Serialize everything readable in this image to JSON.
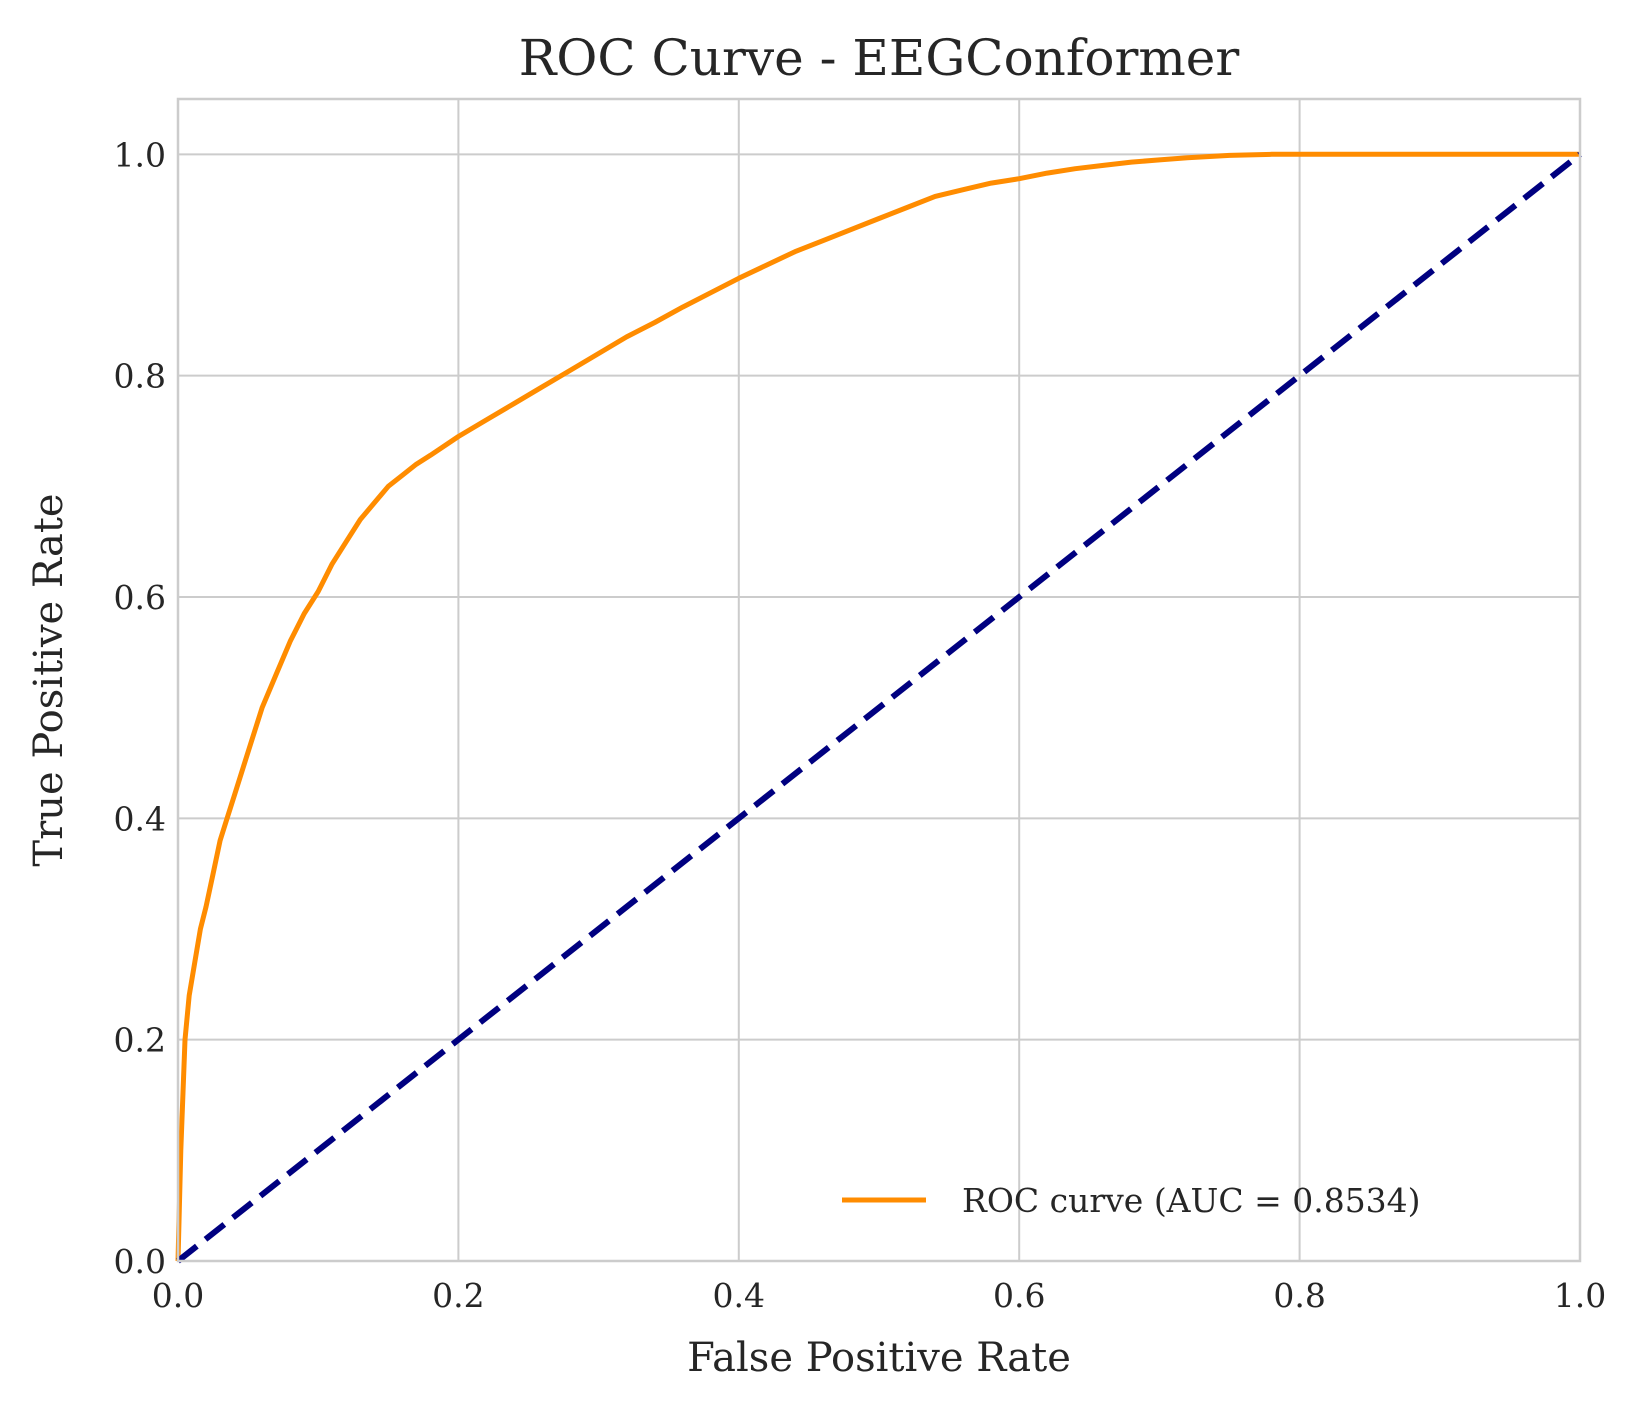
{
  "chart_data": {
    "type": "line",
    "title": "ROC Curve - EEGConformer",
    "xlabel": "False Positive Rate",
    "ylabel": "True Positive Rate",
    "xlim": [
      0.0,
      1.0
    ],
    "ylim": [
      0.0,
      1.05
    ],
    "x_ticks": [
      "0.0",
      "0.2",
      "0.4",
      "0.6",
      "0.8",
      "1.0"
    ],
    "y_ticks": [
      "0.0",
      "0.2",
      "0.4",
      "0.6",
      "0.8",
      "1.0"
    ],
    "grid": true,
    "legend_position": "lower-right",
    "series": [
      {
        "name": "ROC curve (AUC = 0.8534)",
        "color": "#ff8c00",
        "line_style": "solid",
        "x": [
          0.0,
          0.002,
          0.005,
          0.008,
          0.012,
          0.016,
          0.02,
          0.025,
          0.03,
          0.035,
          0.04,
          0.05,
          0.06,
          0.07,
          0.08,
          0.09,
          0.1,
          0.11,
          0.12,
          0.13,
          0.14,
          0.15,
          0.16,
          0.17,
          0.18,
          0.2,
          0.22,
          0.24,
          0.26,
          0.28,
          0.3,
          0.32,
          0.34,
          0.36,
          0.38,
          0.4,
          0.42,
          0.44,
          0.46,
          0.48,
          0.5,
          0.52,
          0.54,
          0.56,
          0.58,
          0.6,
          0.62,
          0.64,
          0.66,
          0.68,
          0.7,
          0.72,
          0.75,
          0.78,
          0.8,
          0.85,
          0.9,
          0.95,
          1.0
        ],
        "y": [
          0.0,
          0.1,
          0.2,
          0.24,
          0.27,
          0.3,
          0.32,
          0.35,
          0.38,
          0.4,
          0.42,
          0.46,
          0.5,
          0.53,
          0.56,
          0.585,
          0.605,
          0.63,
          0.65,
          0.67,
          0.685,
          0.7,
          0.71,
          0.72,
          0.728,
          0.745,
          0.76,
          0.775,
          0.79,
          0.805,
          0.82,
          0.835,
          0.848,
          0.862,
          0.875,
          0.888,
          0.9,
          0.912,
          0.922,
          0.932,
          0.942,
          0.952,
          0.962,
          0.968,
          0.974,
          0.978,
          0.983,
          0.987,
          0.99,
          0.993,
          0.995,
          0.997,
          0.999,
          1.0,
          1.0,
          1.0,
          1.0,
          1.0,
          1.0
        ]
      },
      {
        "name": "",
        "color": "#000080",
        "line_style": "dashed",
        "x": [
          0.0,
          1.0
        ],
        "y": [
          0.0,
          1.0
        ]
      }
    ]
  }
}
